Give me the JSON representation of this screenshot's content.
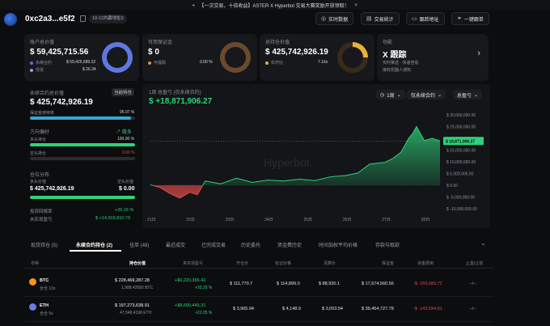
{
  "banner": {
    "text": "【一次交易，十倍收益】ASTER X Hyperbot 交易大赛奖励开放领取！"
  },
  "header": {
    "address": "0xc2a3...e5f2",
    "address_tag": "10-11内幕地址3",
    "buttons": [
      {
        "label": "实时数据",
        "icon": "radar-icon"
      },
      {
        "label": "交易统计",
        "icon": "chart-icon"
      },
      {
        "label": "跟踪地址",
        "icon": "monitor-icon"
      },
      {
        "label": "一键跟单",
        "icon": "copy-trade-icon"
      }
    ]
  },
  "cards": {
    "account": {
      "title": "账户总价值",
      "value": "$ 59,425,715.56",
      "rows": [
        {
          "label": "永续合约",
          "value": "$ 59,425,689.22",
          "color": "#5b72d6"
        },
        {
          "label": "现货",
          "value": "$ 26.34",
          "color": "#8fa0f0"
        }
      ],
      "ring": {
        "fraction": 1.0,
        "color": "#5f78e0"
      }
    },
    "margin": {
      "title": "可用保证金",
      "value": "$ 0",
      "rows": [
        {
          "label": "可提取",
          "value": "0.00 %",
          "color": "#e0903a"
        }
      ],
      "ring": {
        "fraction": 0.0,
        "color": "#6a4a2e"
      }
    },
    "position": {
      "title": "总持仓价值",
      "value": "$ 425,742,926.19",
      "rows": [
        {
          "label": "杠杆比",
          "value": "7.16x",
          "color": "#e0b040"
        }
      ],
      "ring": {
        "fraction": 0.25,
        "color": "#e8b03c"
      }
    },
    "feature": {
      "title": "功能",
      "value": "X 跟踪",
      "rows": [
        {
          "label": "实时推送 · 快速查看"
        },
        {
          "label": "接收机器人通知"
        }
      ]
    }
  },
  "left": {
    "perp_title": "永续合约总价值",
    "perp_badge": "当前持仓",
    "perp_value": "$ 425,742,926.19",
    "margin_label": "保证金使用率",
    "margin_value": "95.97 %",
    "margin_frac": 0.9597,
    "dir_label": "方向偏好",
    "dir_value": "做多",
    "long_label": "多头持仓",
    "long_value": "100.00 %",
    "long_frac": 1.0,
    "short_label": "空头持仓",
    "short_value": "0.00 %",
    "short_frac": 0.0,
    "dist_title": "仓位分布",
    "long_pos_label": "多头价值",
    "short_pos_label": "空头价值",
    "long_pos_value": "$ 425,742,926.19",
    "short_pos_value": "$ 0.00",
    "roe_label": "投资回报率",
    "roe_value": "+26.16 %",
    "upnl_label": "未实现盈亏",
    "upnl_value": "$ +14,919,810.73"
  },
  "chart": {
    "title": "1周 总盈亏 (仅永续合约)",
    "total": "$ +18,871,906.27",
    "filters": [
      "1周",
      "仅永续合约",
      "总盈亏"
    ],
    "tooltip": "$ 18,871,906.27",
    "watermark": "Hyperbot"
  },
  "chart_data": {
    "type": "area",
    "x": [
      "21日",
      "22日",
      "23日",
      "24日",
      "25日",
      "26日",
      "27日",
      "28日"
    ],
    "ylim": [
      -10000000,
      30000000
    ],
    "yticks": [
      "$ 30,000,000.00",
      "$ 25,000,000.00",
      "$ 20,000,000.00",
      "$ 15,000,000.00",
      "$ 10,000,000.00",
      "$ 5,000,000.00",
      "$ 0.00",
      "$ -5,000,000.00",
      "$ -10,000,000.00"
    ],
    "points": [
      [
        0,
        200000
      ],
      [
        0.25,
        -1000000
      ],
      [
        0.5,
        -3500000
      ],
      [
        0.75,
        -5500000
      ],
      [
        1,
        -3000000
      ],
      [
        1.2,
        -4000000
      ],
      [
        1.4,
        1800000
      ],
      [
        1.8,
        600000
      ],
      [
        2.2,
        3000000
      ],
      [
        2.6,
        1200000
      ],
      [
        3,
        2200000
      ],
      [
        3.4,
        1800000
      ],
      [
        3.8,
        2600000
      ],
      [
        4.2,
        2000000
      ],
      [
        4.6,
        3600000
      ],
      [
        5,
        4200000
      ],
      [
        5.3,
        5200000
      ],
      [
        5.6,
        9000000
      ],
      [
        6,
        9800000
      ],
      [
        6.2,
        11500000
      ],
      [
        6.4,
        14000000
      ],
      [
        6.5,
        17000000
      ],
      [
        6.6,
        20000000
      ],
      [
        6.7,
        22000000
      ],
      [
        6.8,
        25000000
      ],
      [
        6.9,
        22000000
      ],
      [
        7,
        19000000
      ],
      [
        7.2,
        20000000
      ],
      [
        7.4,
        18871906
      ]
    ]
  },
  "tabs": [
    "现货持仓 (5)",
    "永续合约持仓 (2)",
    "挂单 (48)",
    "最近成交",
    "已完成交易",
    "历史委托",
    "资金费历史",
    "时间加权平均价格",
    "存款与取款"
  ],
  "table": {
    "headers": [
      "币种",
      "持仓价值",
      "未实现盈亏",
      "开仓价",
      "标记价格",
      "清算价",
      "保证金",
      "资金费用",
      "止盈/止损"
    ],
    "rows": [
      {
        "coin": "BTC",
        "sub": "全仓 13x",
        "value": "$ 228,469,287.28",
        "qty": "1,988.43582 BTC",
        "pnl": "+$6,220,365.42",
        "pnl_pct": "+35.29 %",
        "entry": "$ 111,770.7",
        "mark": "$ 114,899.0",
        "liq": "$ 88,930.1",
        "margin": "$ 17,574,560.56",
        "funding": "-$ -159,683.72",
        "tpsl": "--/--",
        "color": "#f7931a"
      },
      {
        "coin": "ETH",
        "sub": "全仓 5x",
        "value": "$ 197,273,638.91",
        "qty": "47,548.4198 ETH",
        "pnl": "+$8,699,445.31",
        "pnl_pct": "+22.05 %",
        "entry": "$ 3,965.94",
        "mark": "$ 4,148.9",
        "liq": "$ 3,053.54",
        "margin": "$ 39,454,727.78",
        "funding": "-$ -143,694.81",
        "tpsl": "--/--",
        "color": "#6c7be0"
      }
    ]
  }
}
